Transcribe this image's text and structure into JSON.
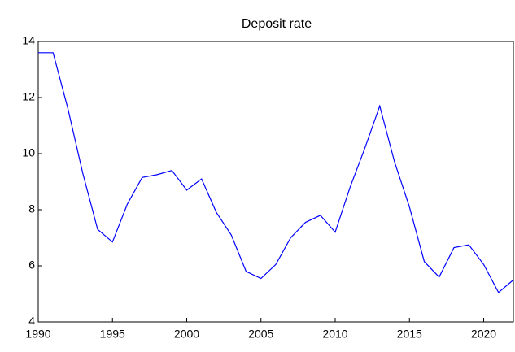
{
  "chart_data": {
    "type": "line",
    "title": "Deposit rate",
    "x": [
      1990,
      1991,
      1992,
      1993,
      1994,
      1995,
      1996,
      1997,
      1998,
      1999,
      2000,
      2001,
      2002,
      2003,
      2004,
      2005,
      2006,
      2007,
      2008,
      2009,
      2010,
      2011,
      2012,
      2013,
      2014,
      2015,
      2016,
      2017,
      2018,
      2019,
      2020,
      2021,
      2022
    ],
    "values": [
      13.6,
      13.6,
      11.6,
      9.3,
      7.3,
      6.85,
      8.2,
      9.15,
      9.25,
      9.4,
      8.7,
      9.1,
      7.9,
      7.1,
      5.8,
      5.55,
      6.05,
      7.0,
      7.55,
      7.8,
      7.2,
      8.8,
      10.2,
      11.7,
      9.7,
      8.1,
      6.15,
      5.6,
      6.65,
      6.75,
      6.05,
      5.05,
      5.5
    ],
    "color": "#0000ff",
    "xlim": [
      1990,
      2022
    ],
    "xticks": [
      1990,
      1995,
      2000,
      2005,
      2010,
      2015,
      2020
    ],
    "ylim": [
      4,
      14
    ],
    "yticks": [
      4,
      6,
      8,
      10,
      12,
      14
    ]
  }
}
